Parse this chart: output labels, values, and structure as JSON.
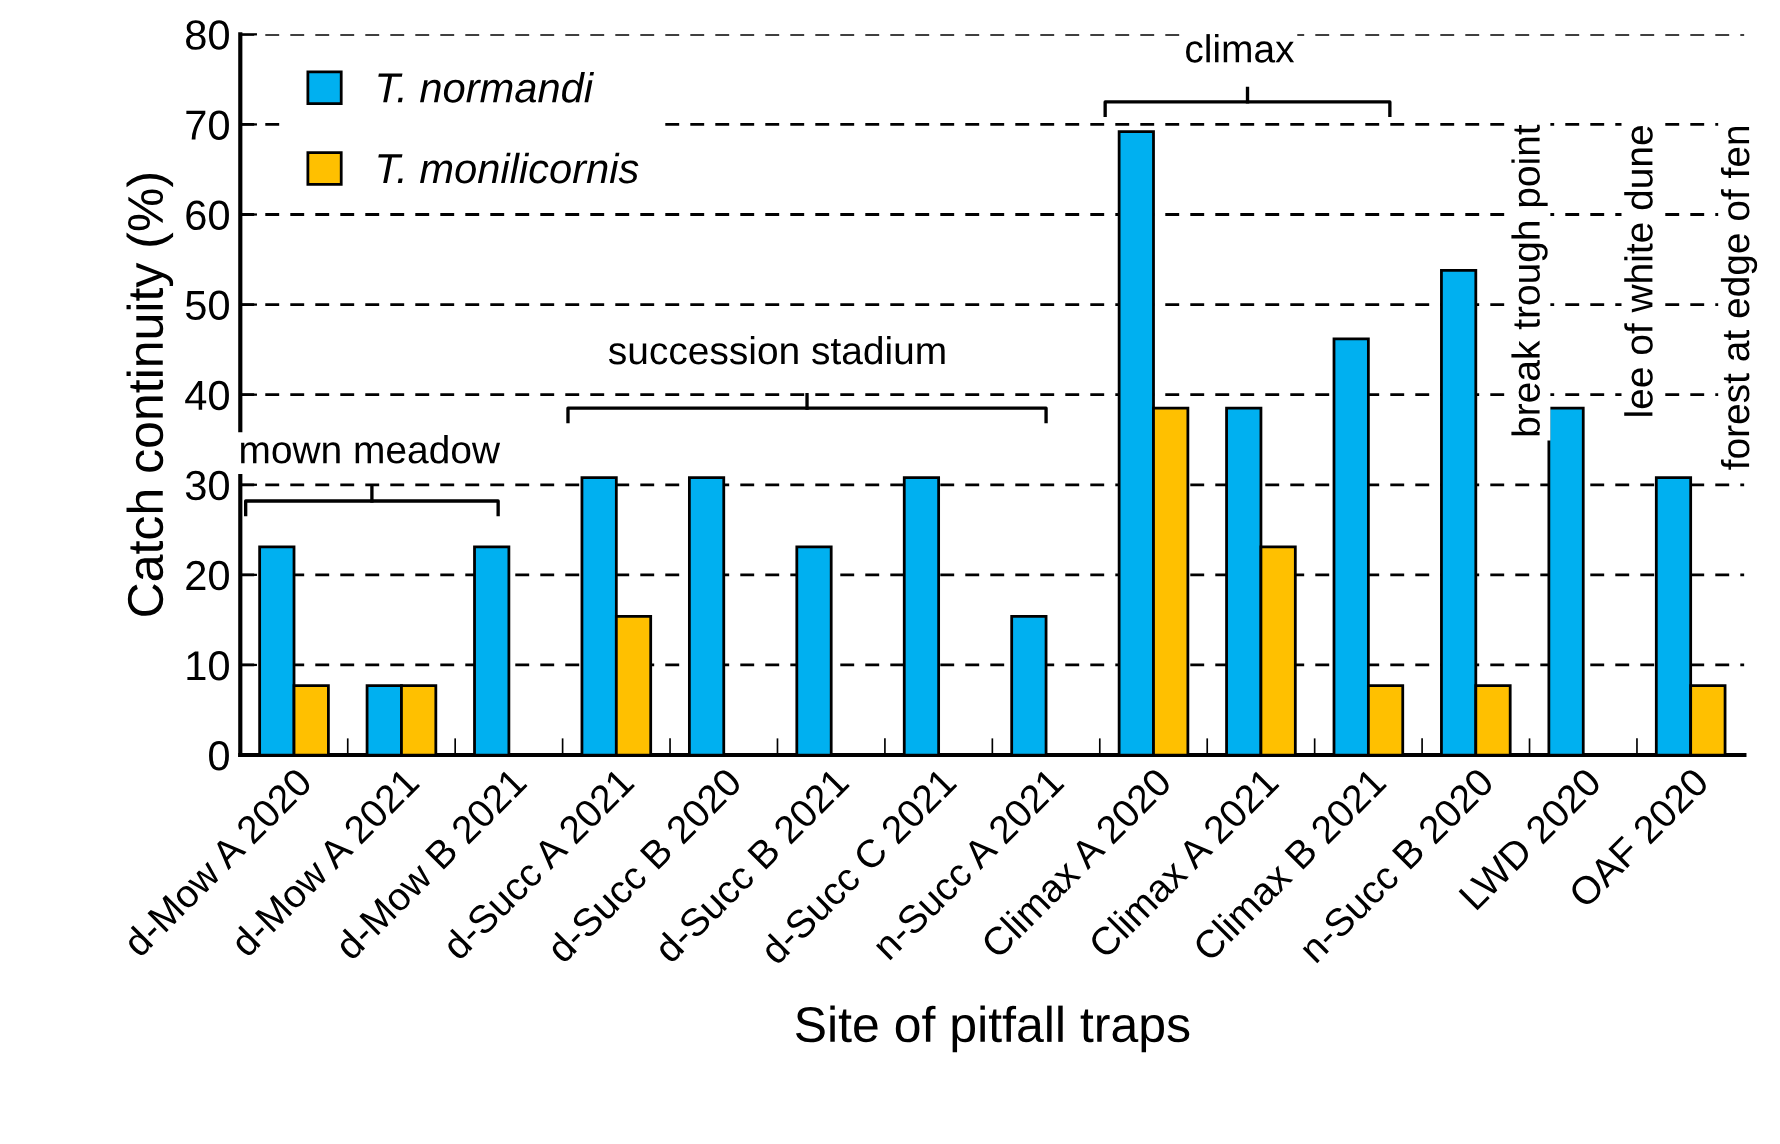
{
  "chart_data": {
    "type": "bar",
    "xlabel": "Site of pitfall traps",
    "ylabel": "Catch continuity (%)",
    "categories": [
      "d-Mow A 2020",
      "d-Mow A 2021",
      "d-Mow B 2021",
      "d-Succ A 2021",
      "d-Succ B 2020",
      "d-Succ B 2021",
      "d-Succ C 2021",
      "n-Succ A 2021",
      "Climax A 2020",
      "Climax A 2021",
      "Climax B 2021",
      "n-Succ B 2020",
      "LWD 2020",
      "OAF 2020"
    ],
    "series": [
      {
        "name": "T. normandi",
        "color": "#00b0f0",
        "values": [
          23.1,
          7.7,
          23.1,
          30.8,
          30.8,
          23.1,
          30.8,
          15.4,
          69.2,
          38.5,
          46.2,
          53.8,
          38.5,
          30.8
        ]
      },
      {
        "name": "T. monilicornis",
        "color": "#ffc000",
        "values": [
          7.7,
          7.7,
          null,
          15.4,
          null,
          null,
          null,
          null,
          38.5,
          23.1,
          7.7,
          7.7,
          null,
          7.7
        ]
      }
    ],
    "ylim": [
      0,
      80
    ],
    "yticks": [
      0,
      10,
      20,
      30,
      40,
      50,
      60,
      70,
      80
    ],
    "grid": "y",
    "line_style": "dashed",
    "legend": "top left",
    "annotations": [
      "mown meadow",
      "succession stadium",
      "climax",
      "break trough point",
      "lee of white dune",
      "forest at edge of fen"
    ]
  }
}
